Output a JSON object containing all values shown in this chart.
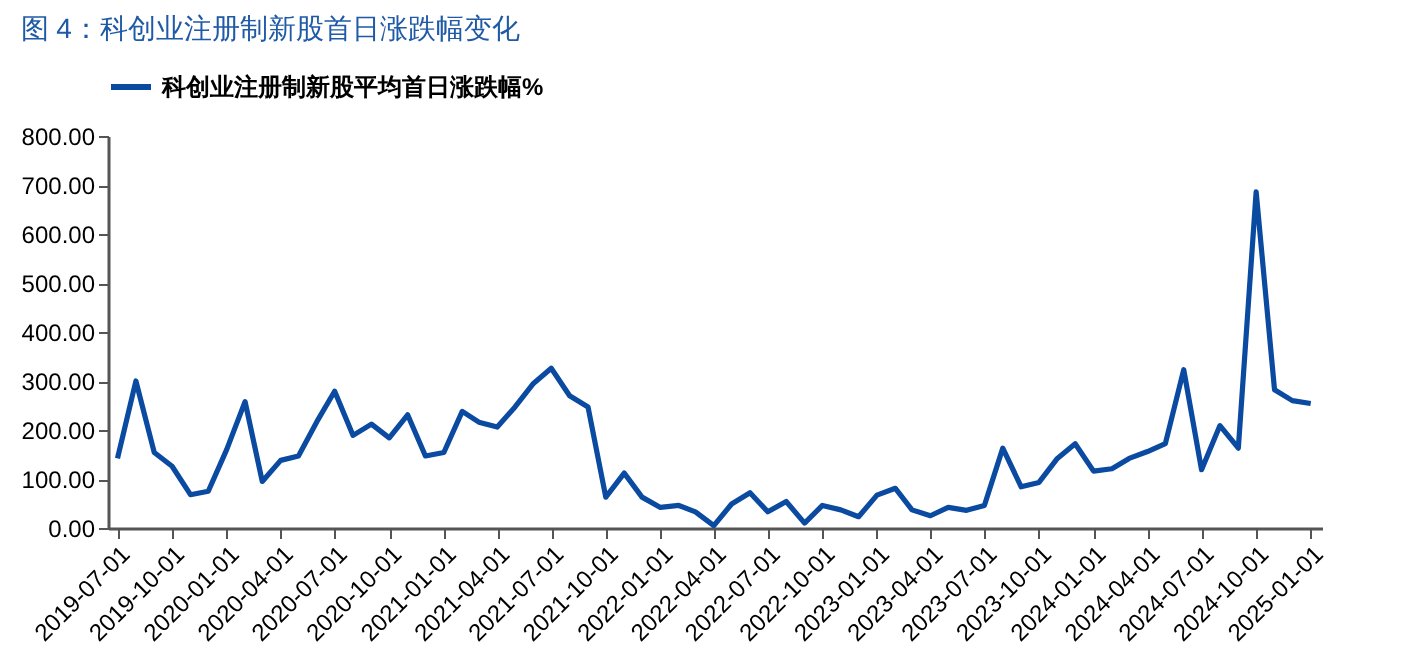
{
  "chart_data": {
    "type": "line",
    "title": "图 4：科创业注册制新股首日涨跌幅变化",
    "x": [
      "2019-07",
      "2019-08",
      "2019-09",
      "2019-10",
      "2019-11",
      "2019-12",
      "2020-01",
      "2020-02",
      "2020-03",
      "2020-04",
      "2020-05",
      "2020-06",
      "2020-07",
      "2020-08",
      "2020-09",
      "2020-10",
      "2020-11",
      "2020-12",
      "2021-01",
      "2021-02",
      "2021-03",
      "2021-04",
      "2021-05",
      "2021-06",
      "2021-07",
      "2021-08",
      "2021-09",
      "2021-10",
      "2021-11",
      "2021-12",
      "2022-01",
      "2022-02",
      "2022-03",
      "2022-04",
      "2022-05",
      "2022-06",
      "2022-07",
      "2022-08",
      "2022-09",
      "2022-10",
      "2022-11",
      "2022-12",
      "2023-01",
      "2023-02",
      "2023-03",
      "2023-04",
      "2023-05",
      "2023-06",
      "2023-07",
      "2023-08",
      "2023-09",
      "2023-10",
      "2023-11",
      "2023-12",
      "2024-01",
      "2024-02",
      "2024-03",
      "2024-04",
      "2024-05",
      "2024-06",
      "2024-07",
      "2024-08",
      "2024-09",
      "2024-10",
      "2024-11",
      "2024-12",
      "2025-01"
    ],
    "series": [
      {
        "name": "科创业注册制新股平均首日涨跌幅%",
        "color": "#0a4aa0",
        "values": [
          142,
          300,
          154,
          126,
          68,
          75,
          160,
          258,
          95,
          138,
          147,
          217,
          279,
          189,
          212,
          184,
          231,
          147,
          154,
          238,
          216,
          206,
          247,
          295,
          326,
          270,
          247,
          63,
          112,
          63,
          42,
          46,
          33,
          5,
          49,
          72,
          33,
          54,
          10,
          46,
          37,
          23,
          67,
          81,
          37,
          25,
          42,
          36,
          46,
          163,
          84,
          93,
          142,
          172,
          116,
          121,
          142,
          156,
          172,
          323,
          119,
          209,
          163,
          686,
          282,
          260,
          254
        ]
      }
    ],
    "ylim": [
      0,
      800
    ],
    "yticks": [
      {
        "value": 0,
        "label": "0.00"
      },
      {
        "value": 100,
        "label": "100.00"
      },
      {
        "value": 200,
        "label": "200.00"
      },
      {
        "value": 300,
        "label": "300.00"
      },
      {
        "value": 400,
        "label": "400.00"
      },
      {
        "value": 500,
        "label": "500.00"
      },
      {
        "value": 600,
        "label": "600.00"
      },
      {
        "value": 700,
        "label": "700.00"
      },
      {
        "value": 800,
        "label": "800.00"
      }
    ],
    "xticks": [
      "2019-07-01",
      "2019-10-01",
      "2020-01-01",
      "2020-04-01",
      "2020-07-01",
      "2020-10-01",
      "2021-01-01",
      "2021-04-01",
      "2021-07-01",
      "2021-10-01",
      "2022-01-01",
      "2022-04-01",
      "2022-07-01",
      "2022-10-01",
      "2023-01-01",
      "2023-04-01",
      "2023-07-01",
      "2023-10-01",
      "2024-01-01",
      "2024-04-01",
      "2024-07-01",
      "2024-10-01",
      "2025-01-01"
    ],
    "xlim": [
      "2019-06-15",
      "2025-01-20"
    ],
    "grid": false,
    "legend": "top",
    "marker": "none",
    "line_style": "solid"
  }
}
